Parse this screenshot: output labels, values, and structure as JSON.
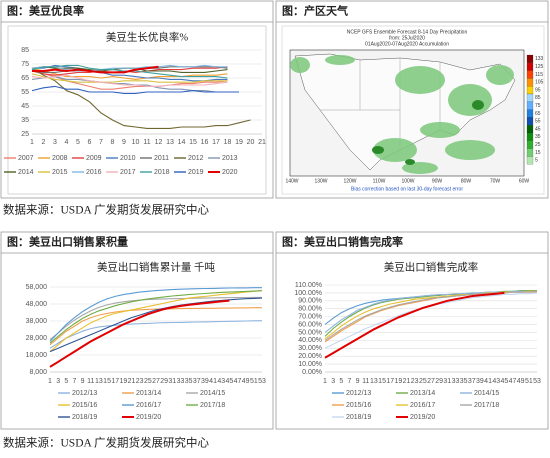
{
  "panels": [
    "图：美豆优良率",
    "图：产区天气",
    "图：美豆出口销售累积量",
    "图：美豆出口销售完成率"
  ],
  "sources": [
    "数据来源：USDA  广发期货发展研究中心",
    "数据来源：USDA  广发期货发展研究中心"
  ],
  "weather_map": {
    "title_lines": [
      "NCEP GFS Ensemble Forecast 8-14 Day Precipitation",
      "from: 25Jul2020",
      "01Aug2020-07Aug2020 Accumulation"
    ],
    "colorbar": [
      "133",
      "125",
      "115",
      "105",
      "95",
      "85",
      "75",
      "65",
      "55",
      "45",
      "35",
      "25",
      "15",
      "5"
    ],
    "colorbar_colors": [
      "#8b0000",
      "#d00000",
      "#ff4000",
      "#ff9000",
      "#ffd000",
      "#a0d8ff",
      "#60b0ff",
      "#2080e0",
      "#1050b0",
      "#006400",
      "#109010",
      "#30b030",
      "#70d070",
      "#b0e8b0"
    ],
    "longitudes": [
      "140W",
      "130W",
      "120W",
      "110W",
      "100W",
      "90W",
      "80W",
      "70W",
      "60W"
    ],
    "footnote": "Bias correction based on last 30-day forecast error"
  },
  "chart_data": [
    {
      "type": "line",
      "title": "美豆生长优良率%",
      "categories": [
        1,
        2,
        3,
        4,
        5,
        6,
        7,
        8,
        9,
        10,
        11,
        12,
        13,
        14,
        15,
        16,
        17,
        18,
        19,
        20,
        21
      ],
      "ylim": [
        25,
        85
      ],
      "yticks": [
        25,
        35,
        45,
        55,
        65,
        75,
        85
      ],
      "grid": true,
      "series": [
        {
          "name": "2007",
          "color": "#f08070",
          "values": [
            70,
            68,
            66,
            63,
            61,
            59,
            57,
            57,
            58,
            59,
            59,
            59,
            60,
            61,
            61,
            62,
            62,
            63,
            null,
            null,
            null
          ]
        },
        {
          "name": "2008",
          "color": "#f0a030",
          "values": [
            72,
            70,
            68,
            66,
            66,
            66,
            65,
            66,
            65,
            64,
            65,
            66,
            66,
            66,
            67,
            67,
            67,
            68,
            null,
            null,
            null
          ]
        },
        {
          "name": "2009",
          "color": "#e04040",
          "values": [
            70,
            68,
            67,
            68,
            69,
            69,
            70,
            69,
            70,
            69,
            70,
            71,
            71,
            71,
            72,
            72,
            72,
            73,
            null,
            null,
            null
          ]
        },
        {
          "name": "2010",
          "color": "#4a7ac0",
          "values": [
            72,
            72,
            74,
            73,
            72,
            70,
            69,
            67,
            67,
            66,
            65,
            65,
            64,
            64,
            63,
            63,
            64,
            64,
            null,
            null,
            null
          ]
        },
        {
          "name": "2011",
          "color": "#707070",
          "values": [
            70,
            69,
            69,
            70,
            70,
            70,
            71,
            71,
            72,
            72,
            72,
            72,
            73,
            73,
            73,
            73,
            73,
            72,
            null,
            null,
            null
          ]
        },
        {
          "name": "2012",
          "color": "#6f6630",
          "values": [
            72,
            67,
            63,
            56,
            53,
            48,
            40,
            35,
            31,
            30,
            29,
            29,
            29,
            30,
            30,
            30,
            31,
            31,
            33,
            35,
            null
          ]
        },
        {
          "name": "2013",
          "color": "#8496b0",
          "values": [
            64,
            65,
            66,
            64,
            64,
            63,
            62,
            61,
            61,
            60,
            60,
            58,
            57,
            57,
            56,
            56,
            55,
            55,
            null,
            null,
            null
          ]
        },
        {
          "name": "2014",
          "color": "#4f6228",
          "values": [
            72,
            73,
            72,
            72,
            72,
            71,
            70,
            71,
            72,
            72,
            70,
            70,
            70,
            69,
            69,
            69,
            70,
            71,
            null,
            null,
            null
          ]
        },
        {
          "name": "2015",
          "color": "#d8c040",
          "values": [
            68,
            66,
            64,
            63,
            62,
            62,
            62,
            62,
            63,
            63,
            63,
            62,
            62,
            62,
            62,
            63,
            63,
            63,
            null,
            null,
            null
          ]
        },
        {
          "name": "2016",
          "color": "#80b8e0",
          "values": [
            72,
            73,
            73,
            71,
            70,
            70,
            71,
            72,
            72,
            72,
            73,
            73,
            74,
            73,
            73,
            74,
            73,
            73,
            null,
            null,
            null
          ]
        },
        {
          "name": "2017",
          "color": "#f0b0b8",
          "values": [
            66,
            65,
            66,
            67,
            65,
            63,
            62,
            61,
            60,
            60,
            59,
            59,
            60,
            60,
            60,
            60,
            61,
            62,
            null,
            null,
            null
          ]
        },
        {
          "name": "2018",
          "color": "#40a0a0",
          "values": [
            71,
            73,
            73,
            74,
            74,
            72,
            71,
            71,
            70,
            70,
            69,
            68,
            67,
            66,
            66,
            66,
            66,
            65,
            null,
            null,
            null
          ]
        },
        {
          "name": "2019",
          "color": "#3060c0",
          "values": [
            56,
            58,
            59,
            57,
            57,
            55,
            55,
            55,
            54,
            54,
            55,
            55,
            55,
            55,
            56,
            55,
            55,
            55,
            55,
            null,
            null
          ]
        },
        {
          "name": "2020",
          "color": "#e00000",
          "values": [
            70,
            70,
            71,
            70,
            71,
            70,
            69,
            69,
            69,
            71,
            72,
            73,
            null,
            null,
            null,
            null,
            null,
            null,
            null,
            null,
            null
          ]
        }
      ]
    },
    {
      "type": "line",
      "title": "美豆出口销售累计量  千吨",
      "categories": [
        1,
        3,
        5,
        7,
        9,
        11,
        13,
        15,
        17,
        19,
        21,
        23,
        25,
        27,
        29,
        31,
        33,
        35,
        37,
        39,
        41,
        43,
        45,
        47,
        49,
        51,
        53
      ],
      "ylim": [
        8000,
        58000
      ],
      "yticks": [
        {
          "value": 8000,
          "label": "8,000"
        },
        {
          "value": 18000,
          "label": "18,000"
        },
        {
          "value": 28000,
          "label": "28,000"
        },
        {
          "value": 38000,
          "label": "38,000"
        },
        {
          "value": 48000,
          "label": "48,000"
        },
        {
          "value": 58000,
          "label": "58,000"
        }
      ],
      "grid": true,
      "series": [
        {
          "name": "2012/13",
          "color": "#8fb4e0",
          "values": [
            22000,
            25000,
            28000,
            30000,
            32000,
            33500,
            34500,
            35000,
            35500,
            36000,
            36200,
            36400,
            36600,
            36800,
            37000,
            37100,
            37200,
            37300,
            37400,
            37500,
            37600,
            37700,
            37800,
            37900,
            38000,
            38100,
            38200
          ]
        },
        {
          "name": "2013/14",
          "color": "#f0a050",
          "values": [
            24000,
            28000,
            32000,
            35000,
            38000,
            40000,
            41500,
            42500,
            43300,
            43900,
            44300,
            44600,
            44800,
            45000,
            45100,
            45200,
            45300,
            45400,
            45400,
            45500,
            45500,
            45600,
            45600,
            45700,
            45700,
            45800,
            45800
          ]
        },
        {
          "name": "2014/15",
          "color": "#a8a8a8",
          "values": [
            27000,
            31000,
            35000,
            38500,
            41500,
            44000,
            46000,
            47500,
            48500,
            49300,
            49900,
            50300,
            50600,
            50800,
            51000,
            51100,
            51200,
            51300,
            51400,
            51500,
            51600,
            51700,
            51700,
            51800,
            51800,
            51900,
            51900
          ]
        },
        {
          "name": "2015/16",
          "color": "#e8c030",
          "values": [
            20000,
            24000,
            28000,
            31000,
            34000,
            37000,
            39000,
            41000,
            42500,
            43500,
            44500,
            45500,
            46500,
            47500,
            48500,
            49500,
            50500,
            51500,
            52000,
            52500,
            53000,
            53500,
            54000,
            54500,
            55000,
            55500,
            56000
          ]
        },
        {
          "name": "2016/17",
          "color": "#5b9bd5",
          "values": [
            26000,
            31000,
            36000,
            40000,
            43500,
            46500,
            49000,
            51000,
            52500,
            53500,
            54300,
            55000,
            55500,
            55900,
            56200,
            56500,
            56700,
            56900,
            57000,
            57100,
            57200,
            57300,
            57400,
            57500,
            57500,
            57600,
            57600
          ]
        },
        {
          "name": "2017/18",
          "color": "#70ad47",
          "values": [
            25000,
            29000,
            33000,
            36500,
            39500,
            42000,
            44000,
            45500,
            47000,
            48200,
            49300,
            50200,
            51000,
            51600,
            52200,
            52700,
            53100,
            53500,
            53900,
            54200,
            54500,
            54800,
            55000,
            55200,
            55400,
            55600,
            55800
          ]
        },
        {
          "name": "2018/19",
          "color": "#2f5597",
          "values": [
            20000,
            22000,
            24000,
            26000,
            28000,
            30000,
            32000,
            34000,
            36000,
            38000,
            40000,
            41500,
            43000,
            44500,
            45500,
            46500,
            47300,
            48000,
            48600,
            49200,
            49700,
            50100,
            50500,
            50800,
            51100,
            51300,
            51500
          ]
        },
        {
          "name": "2019/20",
          "color": "#e00000",
          "values": [
            11000,
            14000,
            17000,
            20000,
            23000,
            26000,
            28500,
            31000,
            33500,
            36000,
            38000,
            40000,
            42000,
            43500,
            45000,
            46000,
            46800,
            47500,
            48000,
            48500,
            49000,
            49500,
            50000,
            null,
            null,
            null,
            null
          ]
        }
      ]
    },
    {
      "type": "line",
      "title": "美豆出口销售完成率",
      "categories": [
        1,
        3,
        5,
        7,
        9,
        11,
        13,
        15,
        17,
        19,
        21,
        23,
        25,
        27,
        29,
        31,
        33,
        35,
        37,
        39,
        41,
        43,
        45,
        47,
        49,
        51,
        53
      ],
      "ylim": [
        0,
        110
      ],
      "yticks": [
        {
          "value": 0,
          "label": "0.00%"
        },
        {
          "value": 10,
          "label": "10.00%"
        },
        {
          "value": 20,
          "label": "20.00%"
        },
        {
          "value": 30,
          "label": "30.00%"
        },
        {
          "value": 40,
          "label": "40.00%"
        },
        {
          "value": 50,
          "label": "50.00%"
        },
        {
          "value": 60,
          "label": "60.00%"
        },
        {
          "value": 70,
          "label": "70.00%"
        },
        {
          "value": 80,
          "label": "80.00%"
        },
        {
          "value": 90,
          "label": "90.00%"
        },
        {
          "value": 100,
          "label": "100.00%"
        },
        {
          "value": 110,
          "label": "110.00%"
        }
      ],
      "grid": true,
      "series": [
        {
          "name": "2012/13",
          "color": "#5b9bd5",
          "values": [
            60,
            68,
            75,
            80,
            84,
            87,
            89,
            91,
            92,
            93,
            94,
            95,
            96,
            97,
            97,
            98,
            98,
            99,
            99,
            100,
            100,
            100,
            101,
            101,
            101,
            102,
            102
          ]
        },
        {
          "name": "2013/14",
          "color": "#70ad47",
          "values": [
            45,
            55,
            63,
            70,
            76,
            81,
            85,
            88,
            90,
            92,
            93,
            94,
            95,
            96,
            97,
            98,
            98,
            99,
            100,
            100,
            101,
            101,
            102,
            102,
            103,
            103,
            103
          ]
        },
        {
          "name": "2014/15",
          "color": "#8fb4e0",
          "values": [
            50,
            58,
            66,
            72,
            78,
            82,
            86,
            89,
            91,
            93,
            94,
            95,
            96,
            97,
            98,
            98,
            99,
            99,
            100,
            100,
            101,
            101,
            101,
            102,
            102,
            102,
            102
          ]
        },
        {
          "name": "2015/16",
          "color": "#f0a050",
          "values": [
            38,
            45,
            52,
            58,
            64,
            70,
            74,
            78,
            81,
            84,
            86,
            88,
            90,
            92,
            94,
            95,
            96,
            97,
            98,
            99,
            99,
            100,
            100,
            101,
            101,
            101,
            101
          ]
        },
        {
          "name": "2016/17",
          "color": "#e8c030",
          "values": [
            42,
            50,
            58,
            65,
            71,
            76,
            80,
            83,
            86,
            88,
            90,
            92,
            93,
            94,
            95,
            96,
            97,
            98,
            98,
            99,
            100,
            100,
            101,
            101,
            101,
            102,
            102
          ]
        },
        {
          "name": "2017/18",
          "color": "#a8a8a8",
          "values": [
            40,
            47,
            54,
            60,
            66,
            71,
            75,
            79,
            82,
            85,
            87,
            89,
            91,
            93,
            94,
            95,
            96,
            97,
            98,
            99,
            99,
            100,
            100,
            101,
            101,
            101,
            102
          ]
        },
        {
          "name": "2018/19",
          "color": "#c8d8f0",
          "values": [
            30,
            35,
            40,
            45,
            50,
            55,
            59,
            63,
            67,
            71,
            75,
            78,
            81,
            84,
            86,
            88,
            90,
            92,
            94,
            95,
            96,
            97,
            98,
            98,
            99,
            99,
            100
          ]
        },
        {
          "name": "2019/20",
          "color": "#e00000",
          "values": [
            18,
            24,
            30,
            36,
            42,
            48,
            54,
            59,
            64,
            69,
            73,
            77,
            81,
            84,
            87,
            90,
            92,
            94,
            96,
            97,
            98,
            99,
            100,
            null,
            null,
            null,
            null
          ]
        }
      ]
    }
  ]
}
